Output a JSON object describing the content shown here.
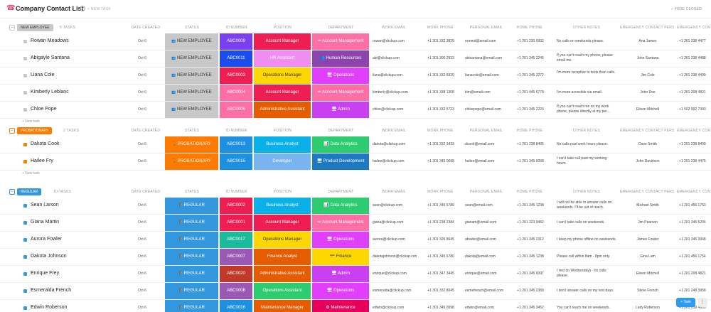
{
  "header": {
    "title": "Company Contact List",
    "new_task": "+ NEW TASK",
    "hide_closed": "✓ HIDE CLOSED",
    "info": "i"
  },
  "columns": [
    "DATE CREATED",
    "STATUS",
    "ID NUMBER",
    "POSITION",
    "DEPARTMENT",
    "WORK EMAIL",
    "WORK PHONE",
    "PERSONAL EMAIL",
    "HOME PHONE",
    "OTHER NOTES",
    "EMERGENCY CONTACT PERSON",
    "EMERGENCY CONTA"
  ],
  "new_task_row": "+ New task",
  "colors": {
    "new_employee": "#c8c8c8",
    "probationary": "#ff7a00",
    "regular": "#3397dd"
  },
  "sections": [
    {
      "status": "NEW EMPLOYEE",
      "count": "5 TASKS",
      "color": "#c8c8c8",
      "status_prefix": "👥",
      "rows": [
        {
          "name": "Rowan Meadows",
          "date": "Oct 6",
          "id": "ABC0009",
          "id_color": "#7b3ff2",
          "position": "Account Manager",
          "pos_color": "#ee1d52",
          "dept": "✏ Account Management",
          "dept_color": "#ff6fa5",
          "work_email": "rowan@clickup.com",
          "work_phone": "+1 301 332 3829",
          "personal_email": "rommd@email.com",
          "home_phone": "+1 201 230 0932",
          "notes": "No calls on weekends please.",
          "contact": "Ana James",
          "ephone": "+1 201 238 4477"
        },
        {
          "name": "Abigayle Santana",
          "date": "Oct 6",
          "id": "ABC0011",
          "id_color": "#1a4cf0",
          "position": "HR Assistant",
          "pos_color": "#f08df0",
          "dept": "👥 Human Resources",
          "dept_color": "#8e44ad",
          "work_email": "abi@clickup.com",
          "work_phone": "+1 301 300 2933",
          "personal_email": "abisantana@email.com",
          "home_phone": "+1 201 345 2245",
          "notes": "If you can't reach my phone, please email me.",
          "contact": "John Santana",
          "ephone": "+1 201 238 4488"
        },
        {
          "name": "Liana Cole",
          "date": "Oct 6",
          "id": "ABC0003",
          "id_color": "#ee1d52",
          "position": "Operations Manager",
          "pos_color": "#ffd700",
          "pos_text": "#333",
          "dept": "🖥 Operations",
          "dept_color": "#e040fb",
          "work_email": "liana@clickup.com",
          "work_phone": "+1 301 332 5920",
          "personal_email": "lianacole@email.com",
          "home_phone": "+1 201 345 3272",
          "notes": "I'm more receptive to texts than calls.",
          "contact": "Jim Cole",
          "ephone": "+1 201 238 4499"
        },
        {
          "name": "Kimberly Leblanc",
          "date": "Oct 6",
          "id": "ABC0004",
          "id_color": "#ff6fa5",
          "position": "Account Manager",
          "pos_color": "#ee1d52",
          "dept": "✏ Account Management",
          "dept_color": "#ff6fa5",
          "work_email": "kimberly@clickup.com",
          "work_phone": "+1 301 338 1308",
          "personal_email": "kim@email.com",
          "home_phone": "+1 201 445 6778",
          "notes": "I'm more accesible via email.",
          "contact": "John Doe",
          "ephone": "+1 201 208 4821"
        },
        {
          "name": "Chloe Pope",
          "date": "Oct 6",
          "id": "ABC0006",
          "id_color": "#ff6fa5",
          "position": "Administrative Assistant",
          "pos_color": "#e65c00",
          "dept": "🖥 Admin",
          "dept_color": "#c940f0",
          "work_email": "chloe@clickup.com",
          "work_phone": "+1 301 332 5723",
          "personal_email": "chloepope@email.com",
          "home_phone": "+1 201 345 2223",
          "notes": "If you can't reach me on my work phone, please directly at my per...",
          "contact": "Eileen Mitchell",
          "ephone": "+1 502 992 7303"
        }
      ]
    },
    {
      "status": "PROBATIONARY",
      "count": "2 TASKS",
      "color": "#ff7a00",
      "status_prefix": "🚶🚶",
      "rows": [
        {
          "name": "Dakota Cook",
          "date": "Oct 6",
          "id": "ABC0013",
          "id_color": "#1e90e0",
          "position": "Business Analyst",
          "pos_color": "#0ab0e8",
          "dept": "📊 Data Analytics",
          "dept_color": "#2ecc71",
          "work_email": "dakota@clickup.com",
          "work_phone": "+1 301 332 3423",
          "personal_email": "dcook@email.com",
          "home_phone": "+1 201 238 8495",
          "notes": "No calls past work hours please.",
          "contact": "Dave Smith",
          "ephone": "+1 201 238 8409"
        },
        {
          "name": "Hailee Fry",
          "date": "Oct 6",
          "id": "ABC0015",
          "id_color": "#1e90e0",
          "position": "Developer",
          "pos_color": "#78b4f0",
          "dept": "🖥 Product Development",
          "dept_color": "#1e7ac0",
          "work_email": "hailee@clickup.com",
          "work_phone": "+1 301 345 0098",
          "personal_email": "hailee@email.com",
          "home_phone": "+1 201 345 0098",
          "notes": "I can't take call past my working hours.",
          "contact": "John Davidson",
          "ephone": "+1 201 238 4475"
        }
      ]
    },
    {
      "status": "REGULAR",
      "count": "10 TASKS",
      "color": "#3397dd",
      "status_prefix": "🧑‍🤝‍🧑",
      "rows": [
        {
          "name": "Sean Larson",
          "date": "Oct 6",
          "id": "ABC0002",
          "id_color": "#ee1d52",
          "position": "Business Analyst",
          "pos_color": "#0ab0e8",
          "dept": "📊 Data Analytics",
          "dept_color": "#2ecc71",
          "work_email": "sean@clickup.com",
          "work_phone": "+1 301 345 6789",
          "personal_email": "sean@email.com",
          "home_phone": "+1 201 345 1238",
          "notes": "I will not be able to answer calls on weekends. I'll be out of reach.",
          "contact": "Michael Smith",
          "ephone": "+1 201 456 1753"
        },
        {
          "name": "Giana Martin",
          "date": "Oct 6",
          "id": "ABC0001",
          "id_color": "#ee1d52",
          "position": "Account Manager",
          "pos_color": "#ee1d52",
          "dept": "✏ Account Management",
          "dept_color": "#ff6fa5",
          "work_email": "giana@clickup.com",
          "work_phone": "+1 301 238 2384",
          "personal_email": "gianam@email.com",
          "home_phone": "+1 201 323 9482",
          "notes": "I can't take calls on weekends.",
          "contact": "Jim Pearson",
          "ephone": "+1 201 345 5294"
        },
        {
          "name": "Aurora Fowler",
          "date": "Oct 6",
          "id": "ABC0017",
          "id_color": "#1abc9c",
          "position": "Operations Manager",
          "pos_color": "#ffd700",
          "pos_text": "#333",
          "dept": "🖥 Operations",
          "dept_color": "#e040fb",
          "work_email": "aurora@clickup.com",
          "work_phone": "+1 301 326 8645",
          "personal_email": "afowler@email.com",
          "home_phone": "+1 201 345 2312",
          "notes": "I keep my phone offline on weekends.",
          "contact": "James Fowler",
          "ephone": "+1 201 345 3948"
        },
        {
          "name": "Dakota Johnson",
          "date": "Oct 6",
          "id": "ABC0007",
          "id_color": "#9b59b6",
          "position": "Finance Analyst",
          "pos_color": "#e65c00",
          "dept": "💳 Finance",
          "dept_color": "#ffd700",
          "dept_text": "#333",
          "work_email": "dakotajohnson@clickup.com",
          "work_phone": "+1 301 345 6780",
          "personal_email": "dakota@email.com",
          "home_phone": "+1 201 345 1238",
          "notes": "Please call within 8am - 8pm only.",
          "contact": "Gina Lam",
          "ephone": "+1 201 456 1754"
        },
        {
          "name": "Enrique Frey",
          "date": "Oct 6",
          "id": "ABC0020",
          "id_color": "#c0392b",
          "position": "Administrative Assistant",
          "pos_color": "#e65c00",
          "dept": "🖥 Admin",
          "dept_color": "#c940f0",
          "work_email": "enrique@clickup.com",
          "work_phone": "+1 301 347 3445",
          "personal_email": "enrique@email.com",
          "home_phone": "+1 201 345 0097",
          "notes": "I rest on Wednesdays - no calls please.",
          "contact": "Eileen Mitchell",
          "ephone": "+1 201 208 4821"
        },
        {
          "name": "Esmeralda French",
          "date": "Oct 6",
          "id": "ABC0008",
          "id_color": "#9b59b6",
          "position": "Operations Assistant",
          "pos_color": "#2ecc71",
          "dept": "🖥 Operations",
          "dept_color": "#e040fb",
          "work_email": "esmeralda@clickup.com",
          "work_phone": "+1 301 332 8045",
          "personal_email": "esmefrench@email.com",
          "home_phone": "+1 201 345 2389",
          "notes": "I don't answer calls on my rest days.",
          "contact": "Steve French",
          "ephone": "+1 201 248 3958"
        },
        {
          "name": "Edwin Roberson",
          "date": "Oct 6",
          "id": "ABC0016",
          "id_color": "#1e90e0",
          "position": "Maintenance Manager",
          "pos_color": "#e65c00",
          "dept": "⚙ Maintenance",
          "dept_color": "#e6005c",
          "work_email": "edwin@clickup.com",
          "work_phone": "+1 301 345 0098",
          "personal_email": "edwin@email.com",
          "home_phone": "+1 201 345 3452",
          "notes": "You can't reach me on weekends.",
          "contact": "Lady Roberson",
          "ephone": "+1 201 239 4953"
        }
      ]
    }
  ],
  "fab": {
    "task": "+ Task",
    "menu": "⋮"
  }
}
